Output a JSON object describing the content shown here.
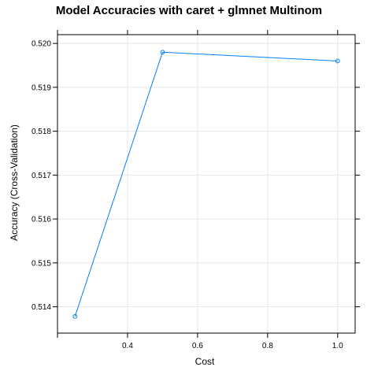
{
  "chart_data": {
    "type": "line",
    "title": "Model Accuracies with caret + glmnet Multinom",
    "xlabel": "Cost",
    "ylabel": "Accuracy (Cross-Validation)",
    "x": [
      0.25,
      0.5,
      1.0
    ],
    "series": [
      {
        "values": [
          0.51378,
          0.5198,
          0.5196
        ]
      }
    ],
    "xlim": [
      0.2,
      1.05
    ],
    "ylim": [
      0.5134,
      0.5202
    ],
    "xticks": [
      0.4,
      0.6,
      0.8,
      1.0
    ],
    "xtick_labels": [
      "0.4",
      "0.6",
      "0.8",
      "1.0"
    ],
    "yticks": [
      0.514,
      0.515,
      0.516,
      0.517,
      0.518,
      0.519,
      0.52
    ],
    "ytick_labels": [
      "0.514",
      "0.515",
      "0.516",
      "0.517",
      "0.518",
      "0.519",
      "0.520"
    ],
    "grid": true,
    "colors": {
      "line": "#0080ff",
      "grid": "#e6e6e6",
      "frame": "#000000"
    }
  }
}
